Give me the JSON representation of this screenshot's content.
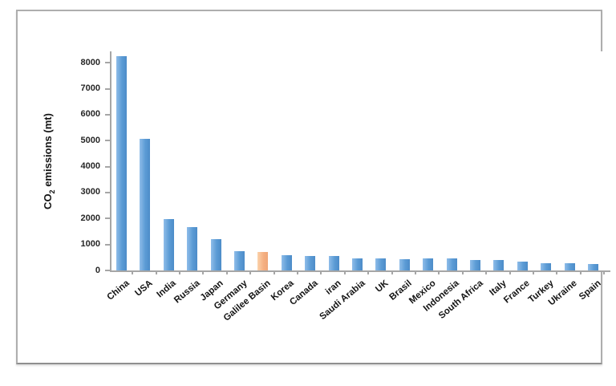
{
  "chart_data": {
    "type": "bar",
    "title": "",
    "xlabel": "",
    "ylabel": "CO2 emissions (mt)",
    "ylabel_parts": {
      "prefix": "CO",
      "sub": "2",
      "suffix": " emissions (mt)"
    },
    "categories": [
      "China",
      "USA",
      "India",
      "Russia",
      "Japan",
      "Germany",
      "Galilee Basin",
      "Korea",
      "Canada",
      "iran",
      "Saudi Arabia",
      "UK",
      "Brasil",
      "Mexico",
      "Indonesia",
      "South Africa",
      "Italy",
      "France",
      "Turkey",
      "Ukraine",
      "Spain"
    ],
    "values": [
      8250,
      5080,
      1970,
      1660,
      1210,
      755,
      705,
      600,
      555,
      545,
      470,
      460,
      435,
      455,
      450,
      395,
      405,
      345,
      290,
      280,
      245
    ],
    "highlight_index": 6,
    "highlight_category": "Galilee Basin",
    "yticks": [
      0,
      1000,
      2000,
      3000,
      4000,
      5000,
      6000,
      7000,
      8000
    ],
    "ylim": [
      0,
      8440
    ],
    "grid": false,
    "legend_position": "none",
    "colors": {
      "bar_blue": "#5b9bd5",
      "bar_blue_light": "#8fbde9",
      "bar_blue_dark": "#4d8cc8",
      "bar_orange": "#f5b183",
      "bar_orange_light": "#fbd2ab",
      "bar_orange_dark": "#efa678",
      "axis": "#a6a6a6",
      "tick_text": "#262626",
      "frame_border": "#aeaeae",
      "background": "#ffffff"
    }
  }
}
